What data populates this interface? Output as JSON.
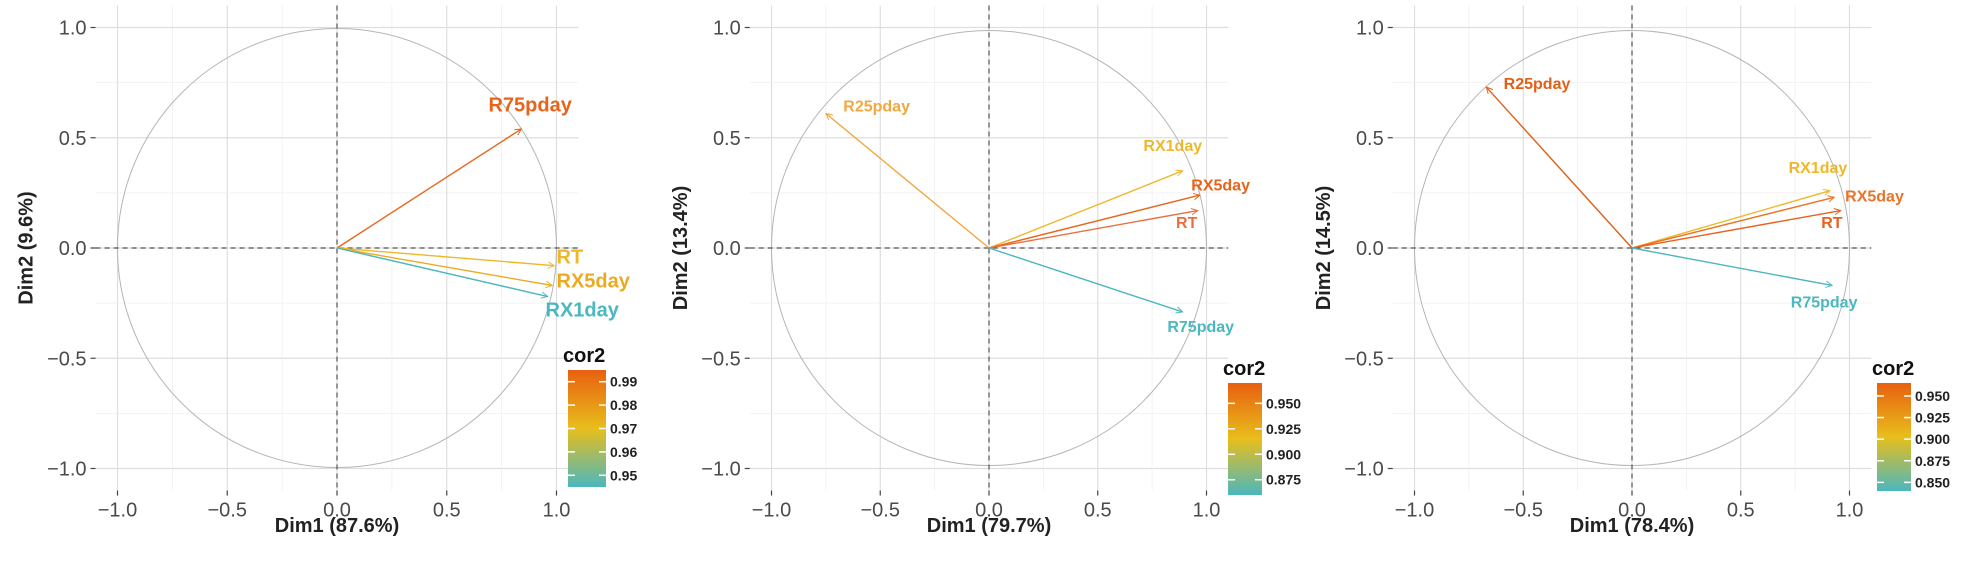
{
  "chart_data": [
    {
      "type": "scatter",
      "subtype": "pca-correlation-circle",
      "title": "",
      "xlabel": "Dim1 (87.6%)",
      "ylabel": "Dim2 (9.6%)",
      "xlim": [
        -1.0,
        1.0
      ],
      "ylim": [
        -1.0,
        1.0
      ],
      "ticks": [
        -1.0,
        -0.5,
        0.0,
        0.5,
        1.0
      ],
      "tick_labels": [
        "−1.0",
        "−0.5",
        "0.0",
        "0.5",
        "1.0"
      ],
      "grid": true,
      "legend": {
        "title": "cor2",
        "placement": "bottom-right",
        "range": [
          0.945,
          0.995
        ],
        "ticks": [
          0.95,
          0.96,
          0.97,
          0.98,
          0.99
        ],
        "tick_labels": [
          "0.95",
          "0.96",
          "0.97",
          "0.98",
          "0.99"
        ],
        "colors": [
          "#4BB7BE",
          "#E8BE1C",
          "#E86010"
        ]
      },
      "variables": [
        {
          "name": "R75pday",
          "x": 0.84,
          "y": 0.54,
          "cor2": 0.99,
          "color": "#E8641A",
          "label_x": 0.69,
          "label_y": 0.62,
          "label_size": 20
        },
        {
          "name": "RT",
          "x": 0.99,
          "y": -0.08,
          "cor2": 0.965,
          "color": "#EEB82A",
          "label_x": 1.0,
          "label_y": -0.07,
          "label_size": 20
        },
        {
          "name": "RX5day",
          "x": 0.98,
          "y": -0.17,
          "cor2": 0.97,
          "color": "#EBAA20",
          "label_x": 1.0,
          "label_y": -0.18,
          "label_size": 20
        },
        {
          "name": "RX1day",
          "x": 0.96,
          "y": -0.22,
          "cor2": 0.945,
          "color": "#4BB7BE",
          "label_x": 0.95,
          "label_y": -0.31,
          "label_size": 20
        }
      ]
    },
    {
      "type": "scatter",
      "subtype": "pca-correlation-circle",
      "title": "",
      "xlabel": "Dim1 (79.7%)",
      "ylabel": "Dim2 (13.4%)",
      "xlim": [
        -1.0,
        1.0
      ],
      "ylim": [
        -1.0,
        1.0
      ],
      "ticks": [
        -1.0,
        -0.5,
        0.0,
        0.5,
        1.0
      ],
      "tick_labels": [
        "−1.0",
        "−0.5",
        "0.0",
        "0.5",
        "1.0"
      ],
      "grid": true,
      "legend": {
        "title": "cor2",
        "placement": "bottom-right",
        "range": [
          0.86,
          0.97
        ],
        "ticks": [
          0.875,
          0.9,
          0.925,
          0.95
        ],
        "tick_labels": [
          "0.875",
          "0.900",
          "0.925",
          "0.950"
        ],
        "colors": [
          "#4BB7BE",
          "#E8BE1C",
          "#E86010"
        ]
      },
      "variables": [
        {
          "name": "R25pday",
          "x": -0.75,
          "y": 0.61,
          "cor2": 0.93,
          "color": "#F0A840",
          "label_x": -0.67,
          "label_y": 0.62,
          "label_size": 16
        },
        {
          "name": "RX1day",
          "x": 0.89,
          "y": 0.35,
          "cor2": 0.94,
          "color": "#EEB82A",
          "label_x": 0.71,
          "label_y": 0.44,
          "label_size": 16
        },
        {
          "name": "RX5day",
          "x": 0.97,
          "y": 0.24,
          "cor2": 0.97,
          "color": "#E8641A",
          "label_x": 0.93,
          "label_y": 0.26,
          "label_size": 16
        },
        {
          "name": "RT",
          "x": 0.96,
          "y": 0.17,
          "cor2": 0.965,
          "color": "#E87040",
          "label_x": 0.86,
          "label_y": 0.09,
          "label_size": 16
        },
        {
          "name": "R75pday",
          "x": 0.89,
          "y": -0.29,
          "cor2": 0.865,
          "color": "#4BB7BE",
          "label_x": 0.82,
          "label_y": -0.38,
          "label_size": 16
        }
      ]
    },
    {
      "type": "scatter",
      "subtype": "pca-correlation-circle",
      "title": "",
      "xlabel": "Dim1 (78.4%)",
      "ylabel": "Dim2 (14.5%)",
      "xlim": [
        -1.0,
        1.0
      ],
      "ylim": [
        -1.0,
        1.0
      ],
      "ticks": [
        -1.0,
        -0.5,
        0.0,
        0.5,
        1.0
      ],
      "tick_labels": [
        "−1.0",
        "−0.5",
        "0.0",
        "0.5",
        "1.0"
      ],
      "grid": true,
      "legend": {
        "title": "cor2",
        "placement": "bottom-right",
        "range": [
          0.84,
          0.965
        ],
        "ticks": [
          0.85,
          0.875,
          0.9,
          0.925,
          0.95
        ],
        "tick_labels": [
          "0.850",
          "0.875",
          "0.900",
          "0.925",
          "0.950"
        ],
        "colors": [
          "#4BB7BE",
          "#E8BE1C",
          "#E86010"
        ]
      },
      "variables": [
        {
          "name": "R25pday",
          "x": -0.67,
          "y": 0.73,
          "cor2": 0.96,
          "color": "#E06018",
          "label_x": -0.59,
          "label_y": 0.72,
          "label_size": 16
        },
        {
          "name": "RX1day",
          "x": 0.91,
          "y": 0.26,
          "cor2": 0.93,
          "color": "#EEB82A",
          "label_x": 0.72,
          "label_y": 0.34,
          "label_size": 16
        },
        {
          "name": "RX5day",
          "x": 0.93,
          "y": 0.23,
          "cor2": 0.95,
          "color": "#E87428",
          "label_x": 0.98,
          "label_y": 0.21,
          "label_size": 16
        },
        {
          "name": "RT",
          "x": 0.96,
          "y": 0.17,
          "cor2": 0.955,
          "color": "#E86020",
          "label_x": 0.87,
          "label_y": 0.09,
          "label_size": 16
        },
        {
          "name": "R75pday",
          "x": 0.92,
          "y": -0.17,
          "cor2": 0.85,
          "color": "#4BB7BE",
          "label_x": 0.73,
          "label_y": -0.27,
          "label_size": 16
        }
      ]
    }
  ]
}
